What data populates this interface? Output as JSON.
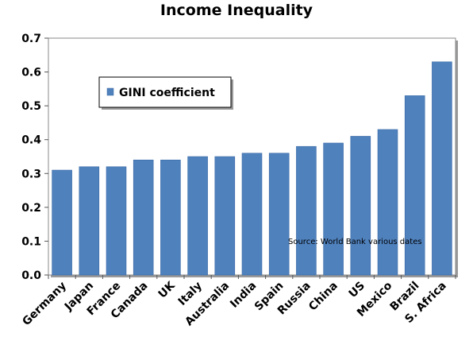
{
  "chart_data": {
    "type": "bar",
    "title": "Income Inequality",
    "xlabel": "",
    "ylabel": "",
    "categories": [
      "Germany",
      "Japan",
      "France",
      "Canada",
      "UK",
      "Italy",
      "Australia",
      "India",
      "Spain",
      "Russia",
      "China",
      "US",
      "Mexico",
      "Brazil",
      "S. Africa"
    ],
    "series": [
      {
        "name": "GINI coefficient",
        "values": [
          0.31,
          0.32,
          0.32,
          0.34,
          0.34,
          0.35,
          0.35,
          0.36,
          0.36,
          0.38,
          0.39,
          0.41,
          0.43,
          0.53,
          0.63
        ]
      }
    ],
    "ylim": [
      0,
      0.7
    ],
    "yticks": [
      "0.0",
      "0.1",
      "0.2",
      "0.3",
      "0.4",
      "0.5",
      "0.6",
      "0.7"
    ],
    "legend_position": "top-left",
    "annotation": "Source:  World Bank various dates",
    "grid": false,
    "colors": {
      "bar": "#4f81bd",
      "bar_edge": "#3a6aa6",
      "plot_border": "#888888",
      "shadow": "#9a9a9a"
    }
  }
}
